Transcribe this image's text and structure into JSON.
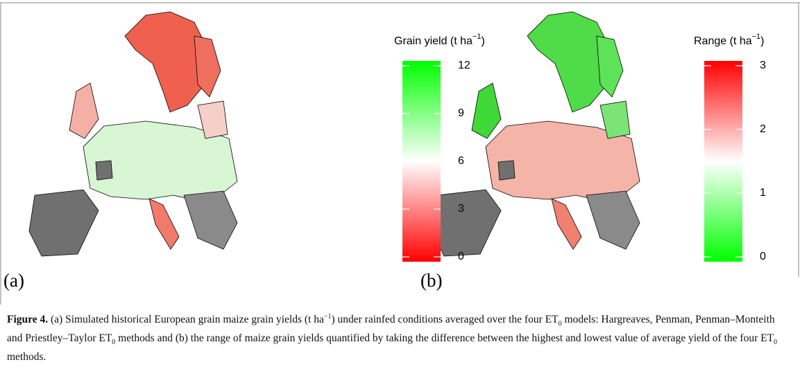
{
  "panels": [
    {
      "label": "(a)",
      "legend_title": {
        "text": "Grain yield (t ha",
        "sup": "−1",
        "end": ")"
      },
      "colorbar": {
        "lim": [
          0,
          12
        ],
        "ticks": [
          0,
          3,
          6,
          9,
          12
        ],
        "colors": [
          "#ff0000",
          "#ffffff",
          "#00ff00"
        ]
      }
    },
    {
      "label": "(b)",
      "legend_title": {
        "text": "Range (t ha",
        "sup": "−1",
        "end": ")"
      },
      "colorbar": {
        "lim": [
          0,
          3
        ],
        "ticks": [
          0,
          1,
          2,
          3
        ],
        "colors": [
          "#00ff00",
          "#ffffff",
          "#ff0000"
        ]
      }
    }
  ],
  "caption": [
    {
      "b": "Figure 4."
    },
    {
      "t": " (a) Simulated historical European grain maize grain yields (t ha"
    },
    {
      "sup": "−1"
    },
    {
      "t": ") under rainfed conditions averaged over the four ET"
    },
    {
      "sub": "0"
    },
    {
      "t": " models: Hargreaves, Penman, Penman–Monteith and Priestley–Taylor ET"
    },
    {
      "sub": "0"
    },
    {
      "t": " methods and (b) the range of maize grain yields quantified by taking the difference between the highest and lowest value of average yield of the four ET"
    },
    {
      "sub": "0"
    },
    {
      "t": " methods."
    }
  ]
}
